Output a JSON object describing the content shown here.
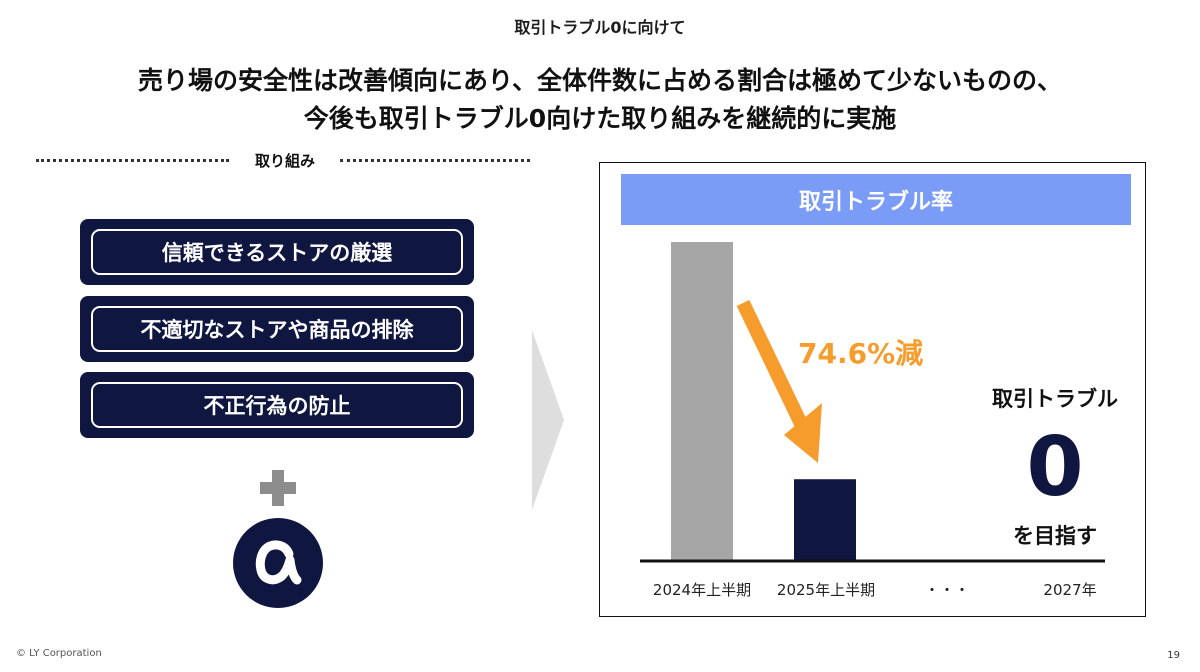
{
  "header": {
    "top_label": "取引トラブル0に向けて",
    "headline_line1": "売り場の安全性は改善傾向にあり、全体件数に占める割合は極めて少ないものの、",
    "headline_line2": "今後も取引トラブル0向けた取り組みを継続的に実施"
  },
  "initiatives": {
    "section_label": "取り組み",
    "items": [
      {
        "label": "信頼できるストアの厳選"
      },
      {
        "label": "不適切なストアや商品の排除"
      },
      {
        "label": "不正行為の防止"
      }
    ],
    "plus_icon": "plus-icon",
    "badge_icon": "alpha-icon"
  },
  "chart_data": {
    "type": "bar",
    "title": "取引トラブル率",
    "categories": [
      "2024年上半期",
      "2025年上半期",
      "・・・",
      "2027年"
    ],
    "values": [
      100,
      25.4,
      null,
      0
    ],
    "colors": [
      "#a6a6a6",
      "#0f1640"
    ],
    "annotation": "74.6%減",
    "annotation_color": "#f59c2c",
    "goal": {
      "line1": "取引トラブル",
      "value": "0",
      "line2": "を目指す"
    }
  },
  "footer": {
    "copyright": "© LY Corporation",
    "page_number": "19"
  }
}
